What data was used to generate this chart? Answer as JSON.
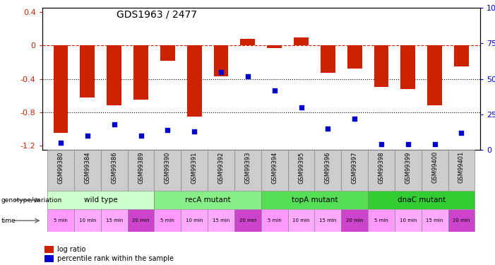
{
  "title": "GDS1963 / 2477",
  "samples": [
    "GSM99380",
    "GSM99384",
    "GSM99386",
    "GSM99389",
    "GSM99390",
    "GSM99391",
    "GSM99392",
    "GSM99393",
    "GSM99394",
    "GSM99395",
    "GSM99396",
    "GSM99397",
    "GSM99398",
    "GSM99399",
    "GSM99400",
    "GSM99401"
  ],
  "log_ratio": [
    -1.05,
    -0.62,
    -0.72,
    -0.65,
    -0.18,
    -0.85,
    -0.37,
    0.08,
    -0.03,
    0.1,
    -0.33,
    -0.28,
    -0.5,
    -0.52,
    -0.72,
    -0.25
  ],
  "pct_rank": [
    5,
    10,
    18,
    10,
    14,
    13,
    55,
    52,
    42,
    30,
    15,
    22,
    4,
    4,
    4,
    12
  ],
  "ylim_left": [
    -1.25,
    0.45
  ],
  "ylim_right": [
    -2,
    100
  ],
  "groups": [
    {
      "label": "wild type",
      "start": 0,
      "end": 4,
      "color": "#ccffcc"
    },
    {
      "label": "recA mutant",
      "start": 4,
      "end": 8,
      "color": "#88ee88"
    },
    {
      "label": "topA mutant",
      "start": 8,
      "end": 12,
      "color": "#55dd55"
    },
    {
      "label": "dnaC mutant",
      "start": 12,
      "end": 16,
      "color": "#33cc33"
    }
  ],
  "times": [
    "5 min",
    "10 min",
    "15 min",
    "20 min",
    "5 min",
    "10 min",
    "15 min",
    "20 min",
    "5 min",
    "10 min",
    "15 min",
    "20 min",
    "5 min",
    "10 min",
    "15 min",
    "20 min"
  ],
  "time_colors": [
    "#ff99ff",
    "#ffaaff",
    "#ffaaff",
    "#cc44cc",
    "#ff99ff",
    "#ffaaff",
    "#ffaaff",
    "#cc44cc",
    "#ff99ff",
    "#ffaaff",
    "#ffaaff",
    "#cc44cc",
    "#ff99ff",
    "#ffaaff",
    "#ffaaff",
    "#cc44cc"
  ],
  "bar_color": "#cc2200",
  "dot_color": "#0000cc",
  "background": "#ffffff",
  "dashed_line_color": "#cc2200",
  "dotted_line_color": "#000000",
  "left_yticks": [
    0.4,
    0.0,
    -0.4,
    -0.8,
    -1.2
  ],
  "right_yticks": [
    100,
    75,
    50,
    25,
    0
  ],
  "sample_label_bg": "#cccccc",
  "arrow_color": "#666666"
}
